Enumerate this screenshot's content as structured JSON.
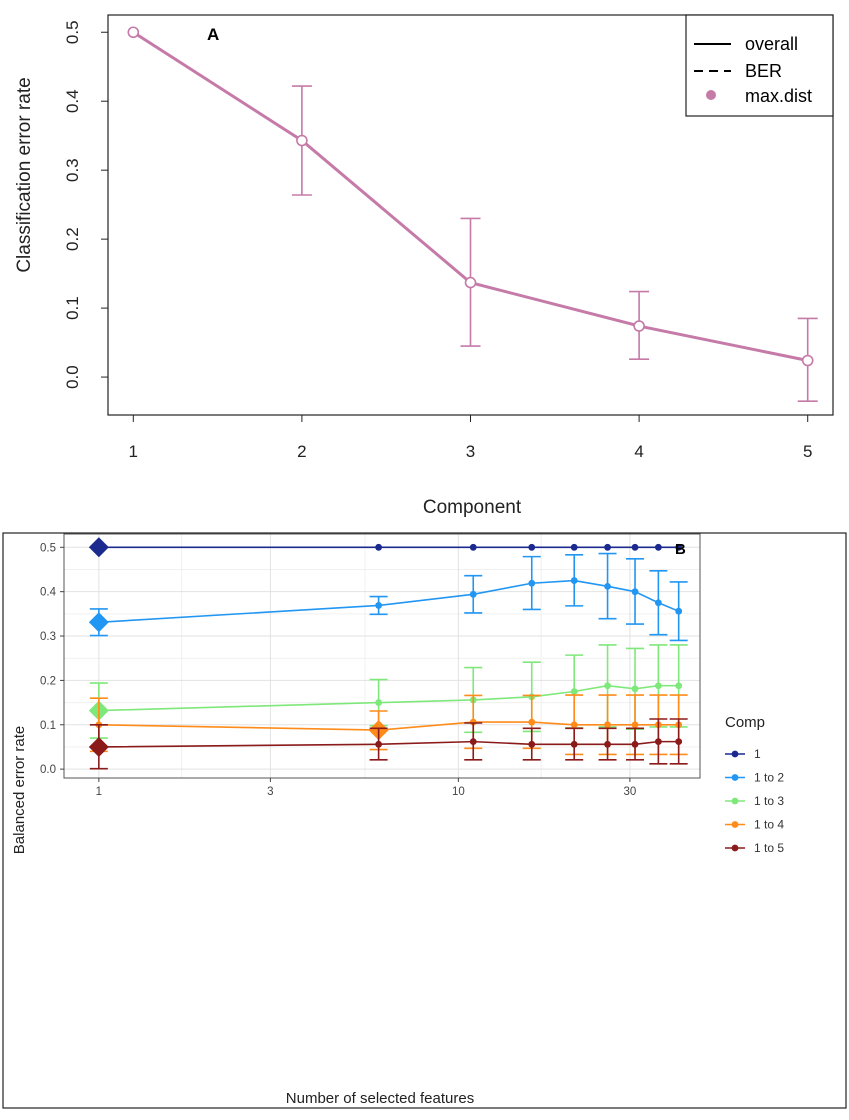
{
  "chart_data": [
    {
      "type": "line",
      "panel_label": "A",
      "xlabel": "Component",
      "ylabel": "Classification error rate",
      "x_ticks": [
        "1",
        "2",
        "3",
        "4",
        "5"
      ],
      "y_ticks": [
        "0.0",
        "0.1",
        "0.2",
        "0.3",
        "0.4",
        "0.5"
      ],
      "x": [
        1,
        2,
        3,
        4,
        5
      ],
      "ylim": [
        -0.055,
        0.525
      ],
      "xlim": [
        0.85,
        5.15
      ],
      "series": [
        {
          "name": "max.dist",
          "color": "#c57aa8",
          "values": [
            0.5,
            0.343,
            0.137,
            0.074,
            0.024
          ],
          "err_low": [
            0.5,
            0.264,
            0.045,
            0.026,
            -0.035
          ],
          "err_high": [
            0.5,
            0.422,
            0.23,
            0.124,
            0.085
          ]
        }
      ],
      "legend": {
        "position": "top-right",
        "items": [
          {
            "label": "overall",
            "style": "solid-line"
          },
          {
            "label": "BER",
            "style": "dashed-line"
          },
          {
            "label": "max.dist",
            "style": "dot"
          }
        ]
      }
    },
    {
      "type": "line",
      "panel_label": "B",
      "xlabel": "Number of selected features",
      "ylabel": "Balanced error rate",
      "x_scale": "log10",
      "x_ticks": [
        "1",
        "3",
        "10",
        "30"
      ],
      "y_ticks": [
        "0.0",
        "0.1",
        "0.2",
        "0.3",
        "0.4",
        "0.5"
      ],
      "xlim": [
        0.8,
        47
      ],
      "ylim": [
        -0.02,
        0.53
      ],
      "x": [
        1,
        6,
        11,
        16,
        21,
        26,
        31,
        36,
        41
      ],
      "legend": {
        "title": "Comp",
        "position": "right"
      },
      "series": [
        {
          "name": "1",
          "color": "#1a2a8f",
          "values": [
            0.5,
            0.5,
            0.5,
            0.5,
            0.5,
            0.5,
            0.5,
            0.5,
            0.5
          ],
          "err_low": [
            0.5,
            0.5,
            0.5,
            0.5,
            0.5,
            0.5,
            0.5,
            0.5,
            0.5
          ],
          "err_high": [
            0.5,
            0.5,
            0.5,
            0.5,
            0.5,
            0.5,
            0.5,
            0.5,
            0.5
          ],
          "optimal_x": 1
        },
        {
          "name": "1 to 2",
          "color": "#2196f3",
          "values": [
            0.331,
            0.369,
            0.394,
            0.419,
            0.425,
            0.412,
            0.4,
            0.375,
            0.356
          ],
          "err_low": [
            0.301,
            0.349,
            0.352,
            0.36,
            0.368,
            0.339,
            0.327,
            0.303,
            0.29
          ],
          "err_high": [
            0.361,
            0.389,
            0.436,
            0.479,
            0.483,
            0.486,
            0.474,
            0.447,
            0.422
          ],
          "optimal_x": 1
        },
        {
          "name": "1 to 3",
          "color": "#7fe87a",
          "values": [
            0.132,
            0.15,
            0.156,
            0.163,
            0.175,
            0.188,
            0.181,
            0.188,
            0.188
          ],
          "err_low": [
            0.07,
            0.098,
            0.083,
            0.085,
            0.093,
            0.095,
            0.09,
            0.095,
            0.095
          ],
          "err_high": [
            0.194,
            0.202,
            0.229,
            0.241,
            0.257,
            0.28,
            0.272,
            0.28,
            0.28
          ],
          "optimal_x": 1
        },
        {
          "name": "1 to 4",
          "color": "#ff8c1a",
          "values": [
            0.1,
            0.088,
            0.106,
            0.106,
            0.1,
            0.1,
            0.1,
            0.1,
            0.1
          ],
          "err_low": [
            0.04,
            0.044,
            0.047,
            0.047,
            0.033,
            0.033,
            0.033,
            0.033,
            0.033
          ],
          "err_high": [
            0.16,
            0.131,
            0.166,
            0.166,
            0.167,
            0.167,
            0.167,
            0.167,
            0.167
          ],
          "optimal_x": 6
        },
        {
          "name": "1 to 5",
          "color": "#8b1a1a",
          "values": [
            0.05,
            0.056,
            0.062,
            0.056,
            0.056,
            0.056,
            0.056,
            0.062,
            0.062
          ],
          "err_low": [
            0.001,
            0.021,
            0.021,
            0.021,
            0.021,
            0.021,
            0.021,
            0.012,
            0.012
          ],
          "err_high": [
            0.1,
            0.092,
            0.104,
            0.092,
            0.092,
            0.092,
            0.092,
            0.113,
            0.113
          ],
          "optimal_x": 1
        }
      ]
    }
  ]
}
